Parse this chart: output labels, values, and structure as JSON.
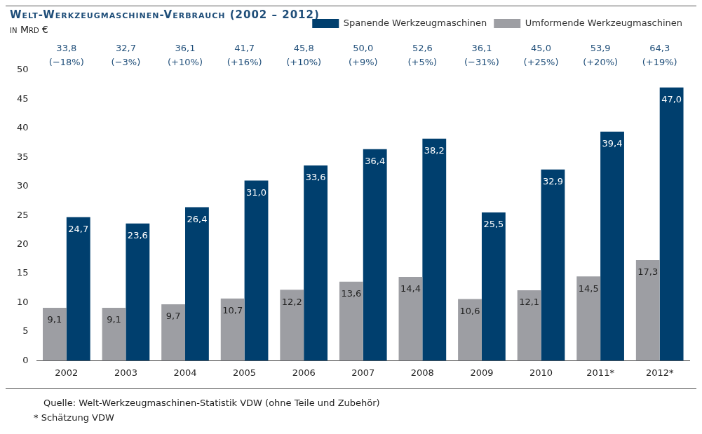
{
  "chart_data": {
    "type": "bar",
    "title": "Welt-Werkzeugmaschinen-Verbrauch (2002 – 2012)",
    "subtitle": "in Mrd €",
    "categories": [
      "2002",
      "2003",
      "2004",
      "2005",
      "2006",
      "2007",
      "2008",
      "2009",
      "2010",
      "2011*",
      "2012*"
    ],
    "series": [
      {
        "name": "Umformende Werkzeugmaschinen",
        "color": "#9d9ea3",
        "values": [
          9.1,
          9.1,
          9.7,
          10.7,
          12.2,
          13.6,
          14.4,
          10.6,
          12.1,
          14.5,
          17.3
        ],
        "value_labels": [
          "9,1",
          "9,1",
          "9,7",
          "10,7",
          "12,2",
          "13,6",
          "14,4",
          "10,6",
          "12,1",
          "14,5",
          "17,3"
        ]
      },
      {
        "name": "Spanende Werkzeugmaschinen",
        "color": "#003f6e",
        "values": [
          24.7,
          23.6,
          26.4,
          31.0,
          33.6,
          36.4,
          38.2,
          25.5,
          32.9,
          39.4,
          47.0
        ],
        "value_labels": [
          "24,7",
          "23,6",
          "26,4",
          "31,0",
          "33,6",
          "36,4",
          "38,2",
          "25,5",
          "32,9",
          "39,4",
          "47,0"
        ]
      }
    ],
    "ylim": [
      0,
      50
    ],
    "yticks": [
      0,
      5,
      10,
      15,
      20,
      25,
      30,
      35,
      40,
      45,
      50
    ],
    "grid": false,
    "legend": "top right",
    "annotations": [
      "33,8 (−18%)",
      "32,7 (−3%)",
      "36,1 (+10%)",
      "41,7 (+16%)",
      "45,8 (+10%)",
      "50,0 (+9%)",
      "52,6 (+5%)",
      "36,1 (−31%)",
      "45,0 (+25%)",
      "53,9 (+20%)",
      "64,3 (+19%)",
      "Quelle: Welt-Werkzeugmaschinen-Statistik VDW (ohne Teile und Zubehör)",
      "* Schätzung VDW"
    ]
  }
}
